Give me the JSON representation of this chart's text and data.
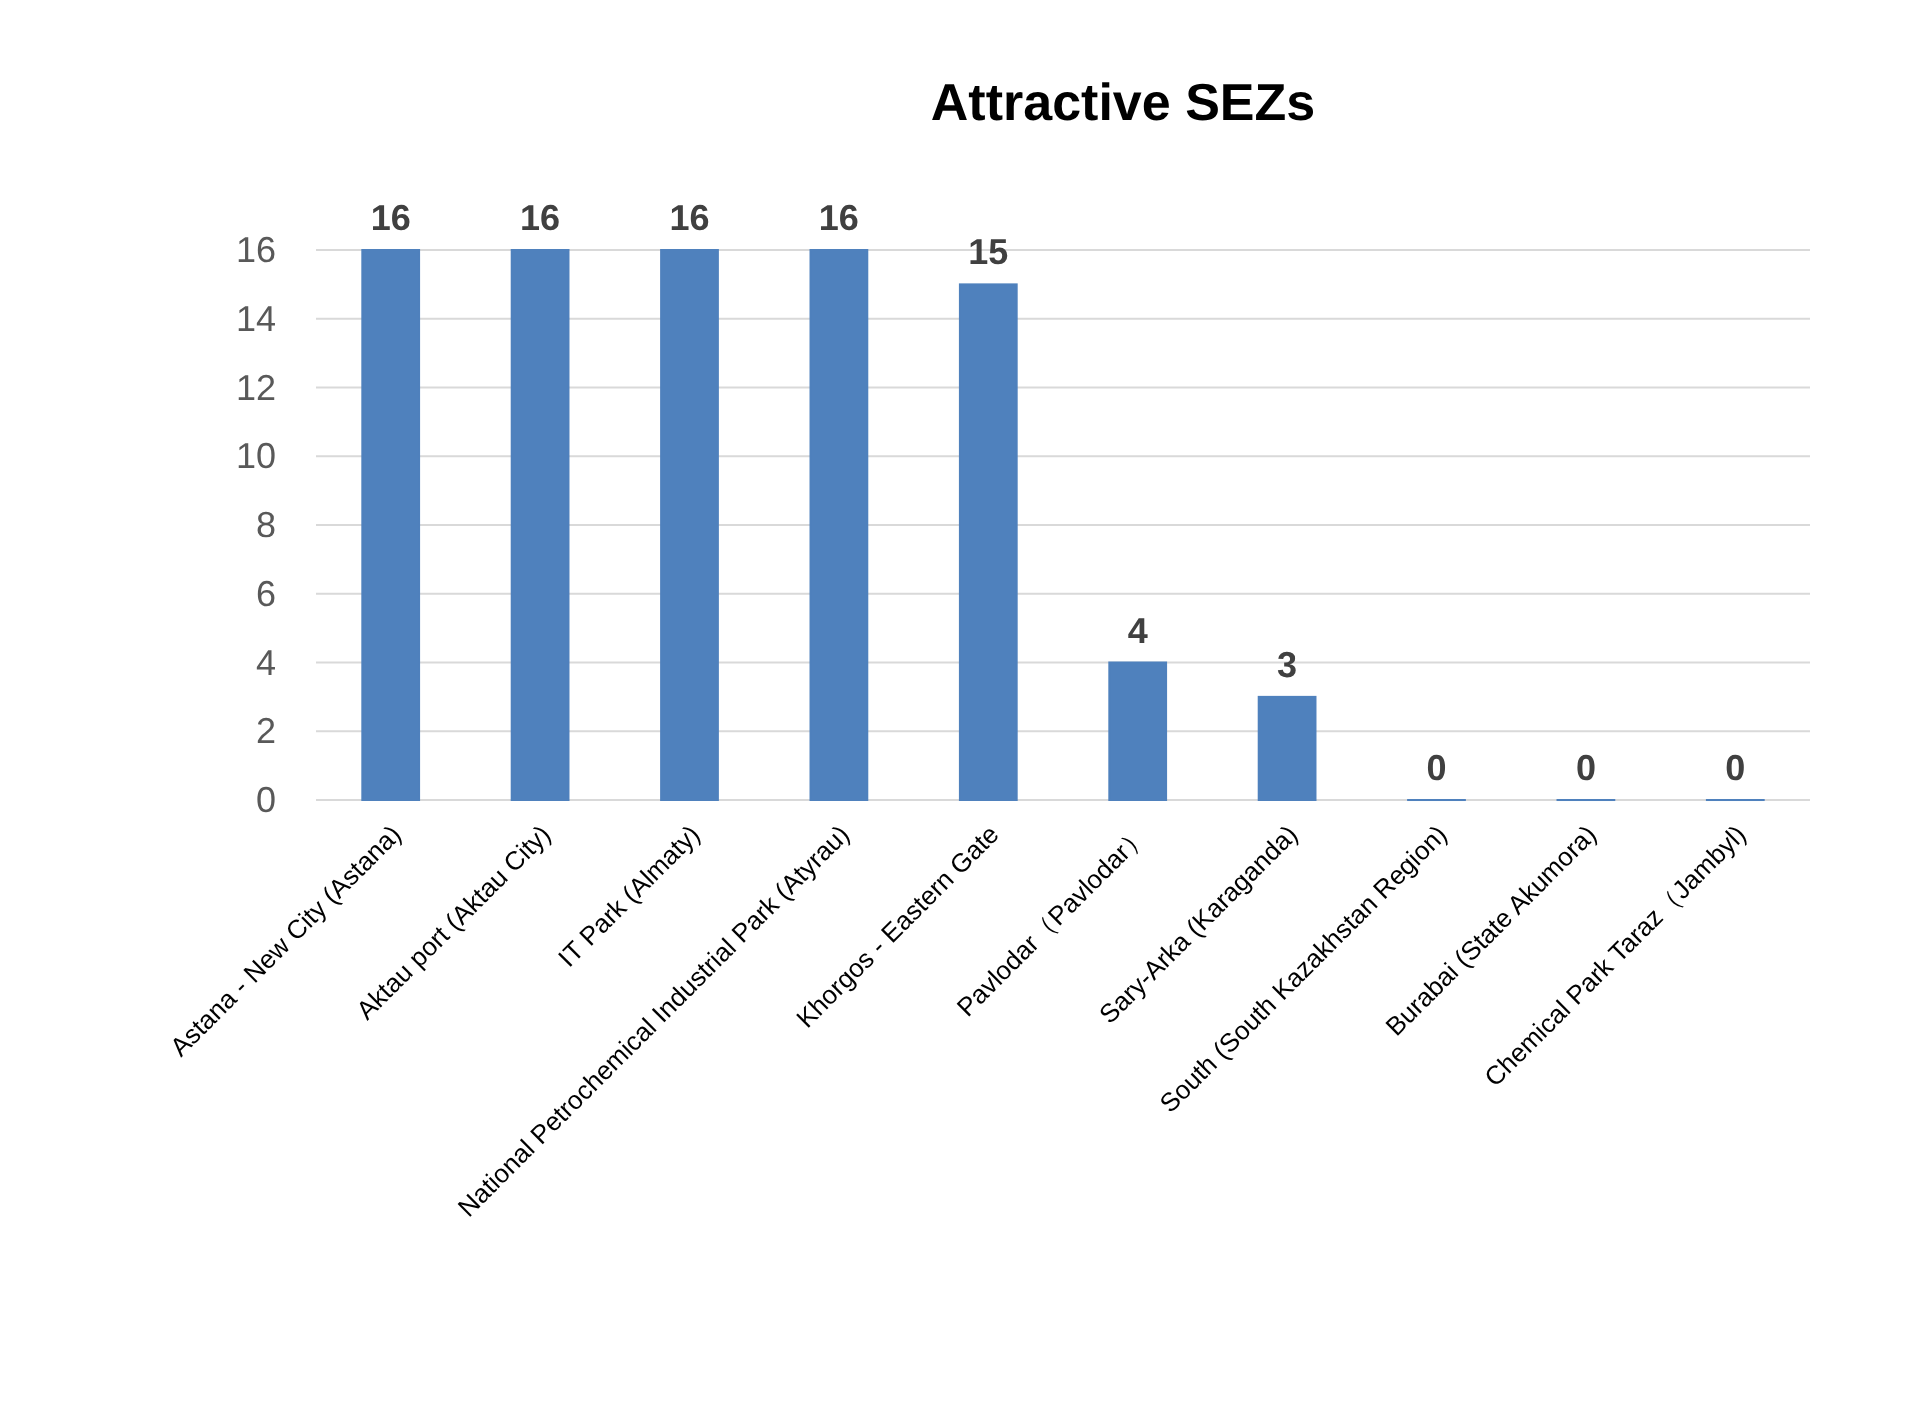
{
  "chart_data": {
    "type": "bar",
    "title": "Attractive SEZs",
    "categories": [
      "Astana - New City (Astana)",
      "Aktau port (Aktau City)",
      "IT Park (Almaty)",
      "National Petrochemical Industrial Park (Atyrau)",
      "Khorgos - Eastern Gate",
      "Pavlodar（Pavlodar）",
      "Sary-Arka (Karaganda)",
      "South (South Kazakhstan Region)",
      "Burabai (State Akumora)",
      "Chemical Park Taraz（Jambyl)"
    ],
    "values": [
      16,
      16,
      16,
      16,
      15,
      4,
      3,
      0,
      0,
      0
    ],
    "color": "#4f81bd",
    "ylim": [
      0,
      16
    ],
    "yticks": [
      0,
      2,
      4,
      6,
      8,
      10,
      12,
      14,
      16
    ],
    "grid": "y",
    "data_labels": true
  }
}
